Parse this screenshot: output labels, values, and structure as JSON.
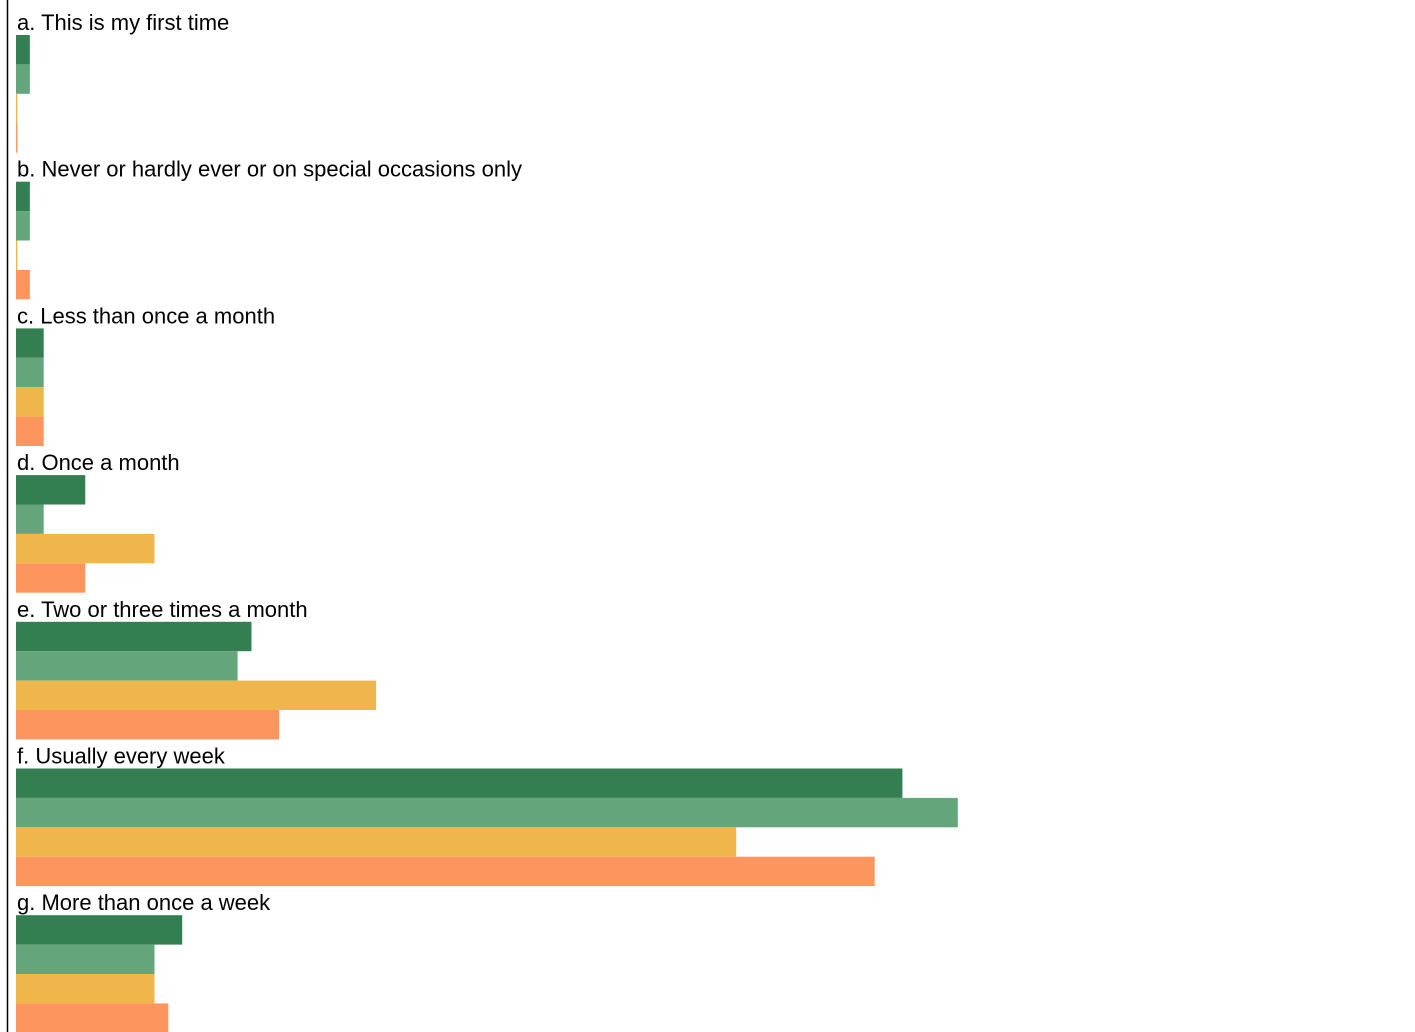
{
  "chart_data": {
    "type": "bar",
    "orientation": "horizontal",
    "categories": [
      "a. This is my first time",
      "b. Never or hardly ever or on special occasions only",
      "c. Less than once a month",
      "d. Once a month",
      "e. Two or three times a month",
      "f. Usually every week",
      "g. More than once a week"
    ],
    "series": [
      {
        "color": "#337f52",
        "values": [
          0.5,
          0.5,
          1.0,
          2.5,
          8.5,
          32.0,
          6.0
        ]
      },
      {
        "color": "#64a57c",
        "values": [
          0.5,
          0.5,
          1.0,
          1.0,
          8.0,
          34.0,
          5.0
        ]
      },
      {
        "color": "#efb74b",
        "values": [
          0.05,
          0.05,
          1.0,
          5.0,
          13.0,
          26.0,
          5.0
        ]
      },
      {
        "color": "#fd965e",
        "values": [
          0.05,
          0.5,
          1.0,
          2.5,
          9.5,
          31.0,
          5.5
        ]
      }
    ],
    "xlim": [
      0,
      50
    ],
    "grid": false,
    "legend": "none"
  }
}
